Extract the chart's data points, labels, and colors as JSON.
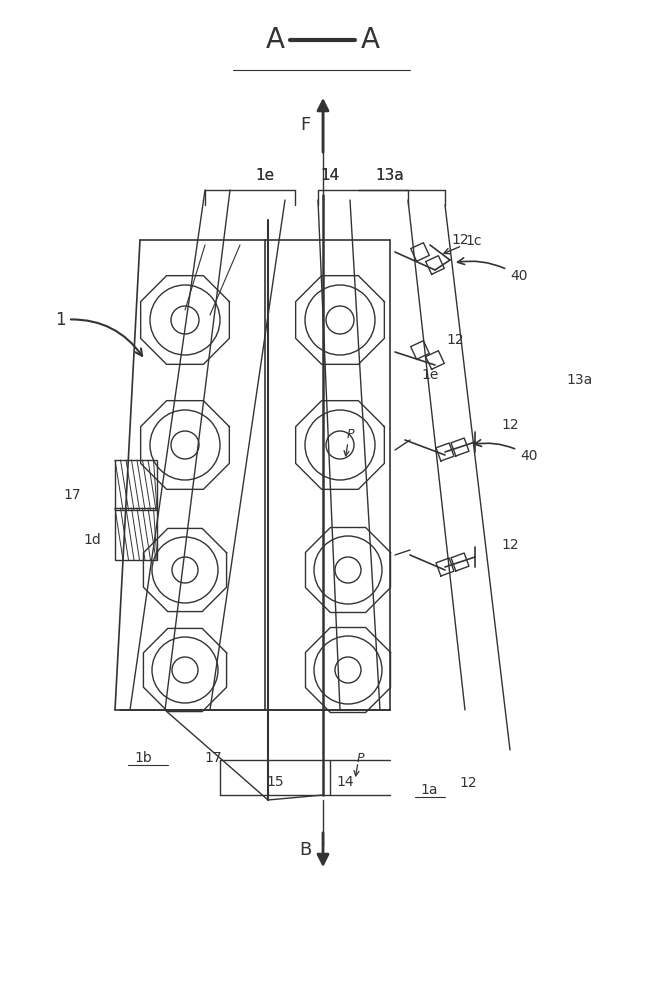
{
  "bg_color": "#ffffff",
  "lc": "#333333",
  "fig_width": 6.46,
  "fig_height": 10.0,
  "dpi": 100,
  "labels": {
    "title_A1": "A",
    "title_dash": "—",
    "title_A2": "A",
    "F": "F",
    "B": "B",
    "n1": "1",
    "n1a": "1a",
    "n1b": "1b",
    "n1c": "1c",
    "n1d": "1d",
    "n1e_top": "1e",
    "n1e_bot": "1e",
    "n12a": "12",
    "n12b": "12",
    "n12c": "12",
    "n12d": "12",
    "n12e": "12",
    "n13a_top": "13a",
    "n13a_bot": "13a",
    "n14_top": "14",
    "n14_bot": "14",
    "n15": "15",
    "n17a": "17",
    "n17b": "17",
    "n40a": "40",
    "n40b": "40",
    "nP1": "P",
    "nP2": "P"
  }
}
